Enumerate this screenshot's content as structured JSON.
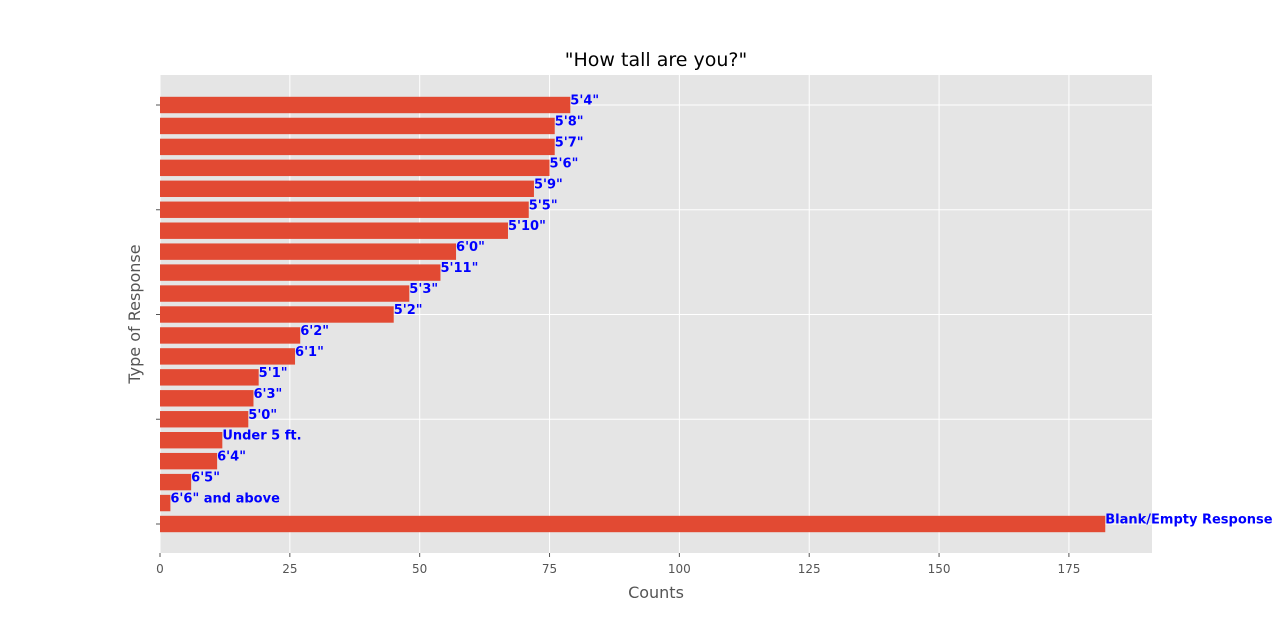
{
  "chart_data": {
    "type": "bar",
    "orientation": "horizontal",
    "title": "\"How tall are you?\"",
    "xlabel": "Counts",
    "ylabel": "Type of Response",
    "xlim": [
      0,
      191
    ],
    "xticks": [
      0,
      25,
      50,
      75,
      100,
      125,
      150,
      175
    ],
    "categories": [
      "5'4\"",
      "5'8\"",
      "5'7\"",
      "5'6\"",
      "5'9\"",
      "5'5\"",
      "5'10\"",
      "6'0\"",
      "5'11\"",
      "5'3\"",
      "5'2\"",
      "6'2\"",
      "6'1\"",
      "5'1\"",
      "6'3\"",
      "5'0\"",
      "Under 5 ft.",
      "6'4\"",
      "6'5\"",
      "6'6\" and above",
      "Blank/Empty Response"
    ],
    "values": [
      79,
      76,
      76,
      75,
      72,
      71,
      67,
      57,
      54,
      48,
      45,
      27,
      26,
      19,
      18,
      17,
      12,
      11,
      6,
      2,
      182
    ],
    "bar_color": "#e24a33",
    "label_color": "#0000ff",
    "background": "#e5e5e5",
    "grid": true
  }
}
